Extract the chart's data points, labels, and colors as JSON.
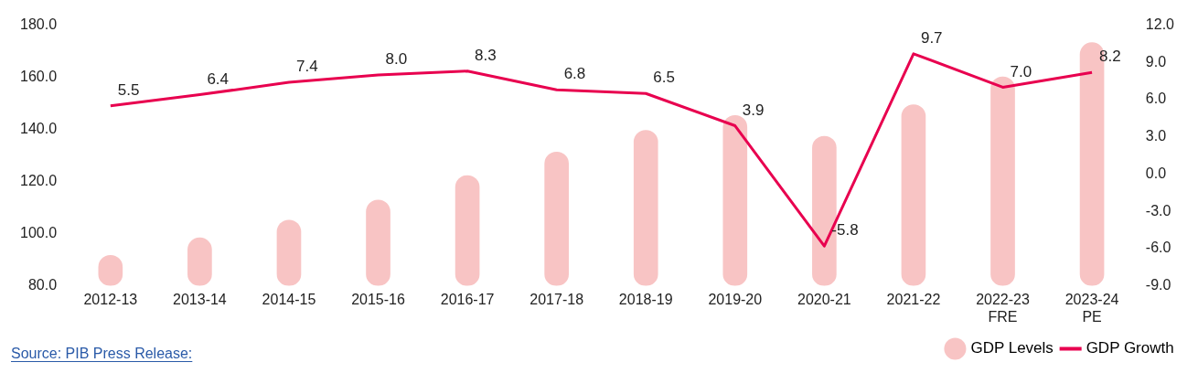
{
  "chart_data": {
    "type": "bar",
    "categories": [
      "2012-13",
      "2013-14",
      "2014-15",
      "2015-16",
      "2016-17",
      "2017-18",
      "2018-19",
      "2019-20",
      "2020-21",
      "2021-22",
      "2022-23 FRE",
      "2023-24 PE"
    ],
    "series": [
      {
        "name": "GDP Levels",
        "color": "#f8c4c4",
        "values": [
          91.7,
          98.4,
          105.2,
          112.9,
          122.3,
          131.3,
          139.7,
          145.4,
          137.4,
          149.5,
          160.2,
          173.3
        ]
      },
      {
        "name": "GDP Growth",
        "type": "line",
        "axis": "y2",
        "color": "#e8004f",
        "values": [
          5.5,
          6.4,
          7.4,
          8.0,
          8.3,
          6.8,
          6.5,
          3.9,
          -5.8,
          9.7,
          7.0,
          8.2
        ],
        "value_labels": [
          "5.5",
          "6.4",
          "7.4",
          "8.0",
          "8.3",
          "6.8",
          "6.5",
          "3.9",
          "-5.8",
          "9.7",
          "7.0",
          "8.2"
        ]
      }
    ],
    "ylim": [
      80,
      180
    ],
    "yticks": [
      {
        "value": 80,
        "label": "80.0"
      },
      {
        "value": 100,
        "label": "100.0"
      },
      {
        "value": 120,
        "label": "120.0"
      },
      {
        "value": 140,
        "label": "140.0"
      },
      {
        "value": 160,
        "label": "160.0"
      },
      {
        "value": 180,
        "label": "180.0"
      }
    ],
    "y2lim": [
      -9,
      12
    ],
    "y2ticks": [
      {
        "value": -9,
        "label": "-9.0"
      },
      {
        "value": -6,
        "label": "-6.0"
      },
      {
        "value": -3,
        "label": "-3.0"
      },
      {
        "value": 0,
        "label": "0.0"
      },
      {
        "value": 3,
        "label": "3.0"
      },
      {
        "value": 6,
        "label": "6.0"
      },
      {
        "value": 9,
        "label": "9.0"
      },
      {
        "value": 12,
        "label": "12.0"
      }
    ],
    "grid": false,
    "legend": "bottom right",
    "marker": "none",
    "line_style": "solid",
    "annotations": [
      "Source: PIB Press Release:"
    ]
  }
}
